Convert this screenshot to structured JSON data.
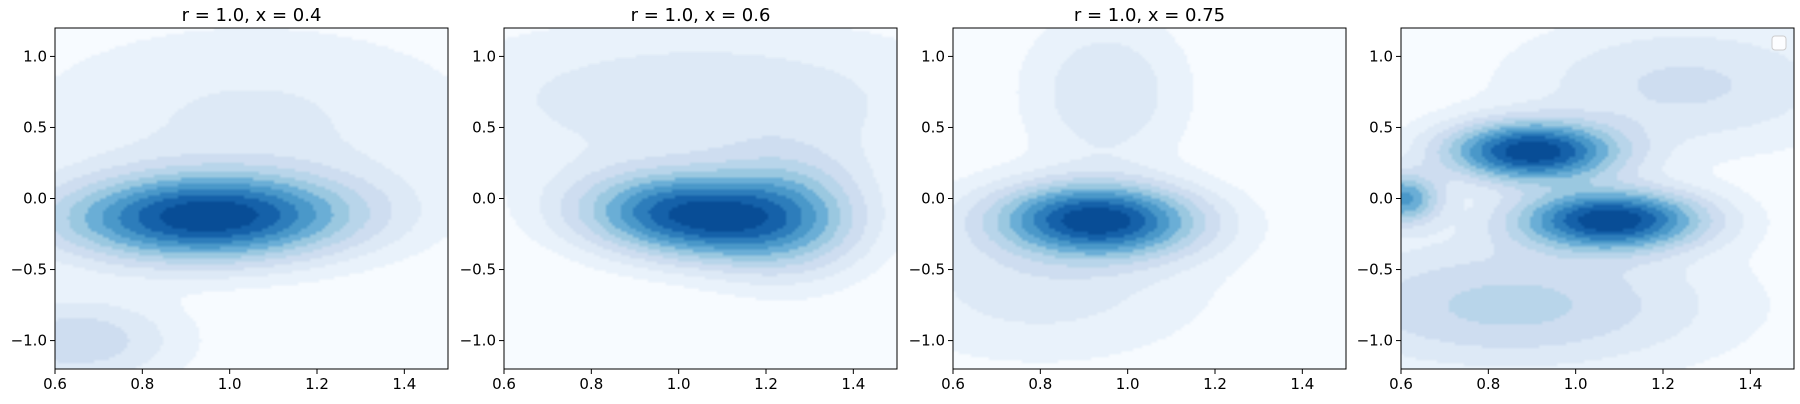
{
  "chart_data": [
    {
      "type": "contour",
      "title": "r = 1.0, x = 0.4",
      "xlabel": "",
      "ylabel": "",
      "xlim": [
        0.6,
        1.5
      ],
      "ylim": [
        -1.2,
        1.2
      ],
      "xticks": [
        "0.6",
        "0.8",
        "1.0",
        "1.2",
        "1.4"
      ],
      "yticks": [
        "−1.0",
        "−0.5",
        "0.0",
        "0.5",
        "1.0"
      ],
      "peaks": [
        {
          "x": 0.95,
          "y": -0.13,
          "sx": 0.22,
          "sy": 0.2,
          "rot": 0.25,
          "a": 1.0
        },
        {
          "x": 0.65,
          "y": -1.0,
          "sx": 0.15,
          "sy": 0.2,
          "rot": 0,
          "a": 0.25
        },
        {
          "x": 1.05,
          "y": 0.55,
          "sx": 0.35,
          "sy": 0.45,
          "rot": 0,
          "a": 0.12
        }
      ],
      "grid": false,
      "legend": false
    },
    {
      "type": "contour",
      "title": "r = 1.0, x = 0.6",
      "xlabel": "",
      "ylabel": "",
      "xlim": [
        0.6,
        1.5
      ],
      "ylim": [
        -1.2,
        1.2
      ],
      "xticks": [
        "0.6",
        "0.8",
        "1.0",
        "1.2",
        "1.4"
      ],
      "yticks": [
        "−1.0",
        "−0.5",
        "0.0",
        "0.5",
        "1.0"
      ],
      "peaks": [
        {
          "x": 1.03,
          "y": -0.12,
          "sx": 0.16,
          "sy": 0.2,
          "rot": 0.3,
          "a": 1.0
        },
        {
          "x": 1.25,
          "y": -0.1,
          "sx": 0.12,
          "sy": 0.28,
          "rot": 0,
          "a": 0.45
        },
        {
          "x": 1.05,
          "y": 0.7,
          "sx": 0.4,
          "sy": 0.35,
          "rot": 0,
          "a": 0.18
        }
      ],
      "grid": false,
      "legend": false
    },
    {
      "type": "contour",
      "title": "r = 1.0, x = 0.75",
      "xlabel": "",
      "ylabel": "",
      "xlim": [
        0.6,
        1.5
      ],
      "ylim": [
        -1.2,
        1.2
      ],
      "xticks": [
        "0.6",
        "0.8",
        "1.0",
        "1.2",
        "1.4"
      ],
      "yticks": [
        "−1.0",
        "−0.5",
        "0.0",
        "0.5",
        "1.0"
      ],
      "peaks": [
        {
          "x": 0.93,
          "y": -0.15,
          "sx": 0.15,
          "sy": 0.17,
          "rot": 0.15,
          "a": 1.0
        },
        {
          "x": 0.95,
          "y": 0.75,
          "sx": 0.12,
          "sy": 0.35,
          "rot": 0,
          "a": 0.18
        },
        {
          "x": 0.8,
          "y": -0.6,
          "sx": 0.25,
          "sy": 0.35,
          "rot": 0,
          "a": 0.15
        }
      ],
      "grid": false,
      "legend": false
    },
    {
      "type": "contour",
      "title": "",
      "xlabel": "",
      "ylabel": "",
      "xlim": [
        0.6,
        1.5
      ],
      "ylim": [
        -1.2,
        1.2
      ],
      "xticks": [
        "0.6",
        "0.8",
        "1.0",
        "1.2",
        "1.4"
      ],
      "yticks": [
        "−1.0",
        "−0.5",
        "0.0",
        "0.5",
        "1.0"
      ],
      "peaks": [
        {
          "x": 0.9,
          "y": 0.33,
          "sx": 0.13,
          "sy": 0.14,
          "rot": 0.1,
          "a": 1.0
        },
        {
          "x": 1.08,
          "y": -0.15,
          "sx": 0.14,
          "sy": 0.14,
          "rot": 0.1,
          "a": 1.0
        },
        {
          "x": 0.6,
          "y": 0.0,
          "sx": 0.06,
          "sy": 0.12,
          "rot": 0,
          "a": 0.6
        },
        {
          "x": 0.85,
          "y": -0.75,
          "sx": 0.3,
          "sy": 0.3,
          "rot": 0,
          "a": 0.3
        },
        {
          "x": 1.25,
          "y": 0.8,
          "sx": 0.25,
          "sy": 0.3,
          "rot": 0,
          "a": 0.2
        }
      ],
      "grid": false,
      "legend": true,
      "legend_loc": "upper right"
    }
  ],
  "colors": {
    "levels": [
      "#f7fbff",
      "#e9f2fb",
      "#dde9f6",
      "#ceddf0",
      "#b8d5ea",
      "#9ac8e0",
      "#6aaed6",
      "#4a98c9",
      "#2d7dbb",
      "#1561a9",
      "#084d96"
    ]
  }
}
